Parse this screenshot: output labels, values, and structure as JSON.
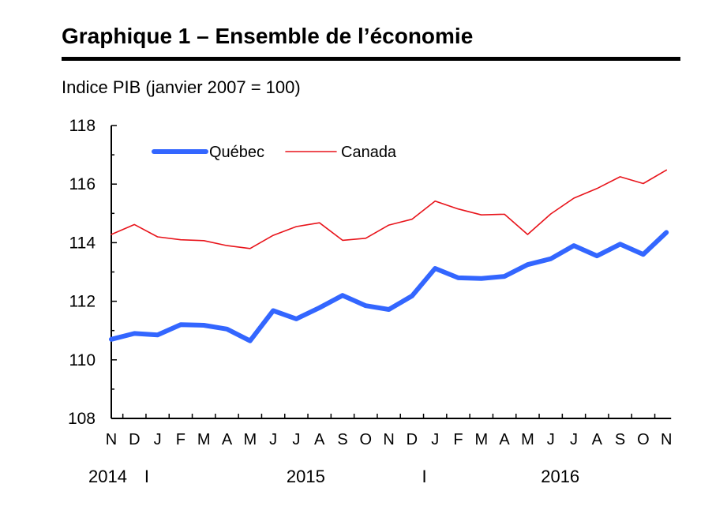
{
  "chart_data": {
    "type": "line",
    "title": "Graphique 1 – Ensemble de l’économie",
    "ylabel": "Indice PIB (janvier 2007 = 100)",
    "ylim": [
      108,
      118
    ],
    "yticks": [
      108,
      110,
      112,
      114,
      116,
      118
    ],
    "categories": [
      "N",
      "D",
      "J",
      "F",
      "M",
      "A",
      "M",
      "J",
      "J",
      "A",
      "S",
      "O",
      "N",
      "D",
      "J",
      "F",
      "M",
      "A",
      "M",
      "J",
      "J",
      "A",
      "S",
      "O",
      "N"
    ],
    "year_labels": [
      {
        "label": "2014",
        "at": 0
      },
      {
        "label": "2015",
        "at": 8
      },
      {
        "label": "2016",
        "at": 19
      }
    ],
    "year_separators": [
      1.5,
      13.5
    ],
    "separator_glyph": "I",
    "legend_position": "top-left",
    "grid": false,
    "series": [
      {
        "name": "Québec",
        "color": "#3366ff",
        "values": [
          110.7,
          110.9,
          110.85,
          111.2,
          111.18,
          111.05,
          110.65,
          111.68,
          111.4,
          111.78,
          112.2,
          111.85,
          111.72,
          112.18,
          113.12,
          112.8,
          112.78,
          112.85,
          113.25,
          113.45,
          113.9,
          113.55,
          113.95,
          113.6,
          114.35
        ]
      },
      {
        "name": "Canada",
        "color": "#e8141b",
        "values": [
          114.28,
          114.62,
          114.2,
          114.1,
          114.07,
          113.9,
          113.8,
          114.25,
          114.55,
          114.68,
          114.08,
          114.15,
          114.6,
          114.8,
          115.42,
          115.15,
          114.95,
          114.97,
          114.28,
          114.98,
          115.52,
          115.85,
          116.25,
          116.02,
          116.48
        ]
      }
    ]
  }
}
